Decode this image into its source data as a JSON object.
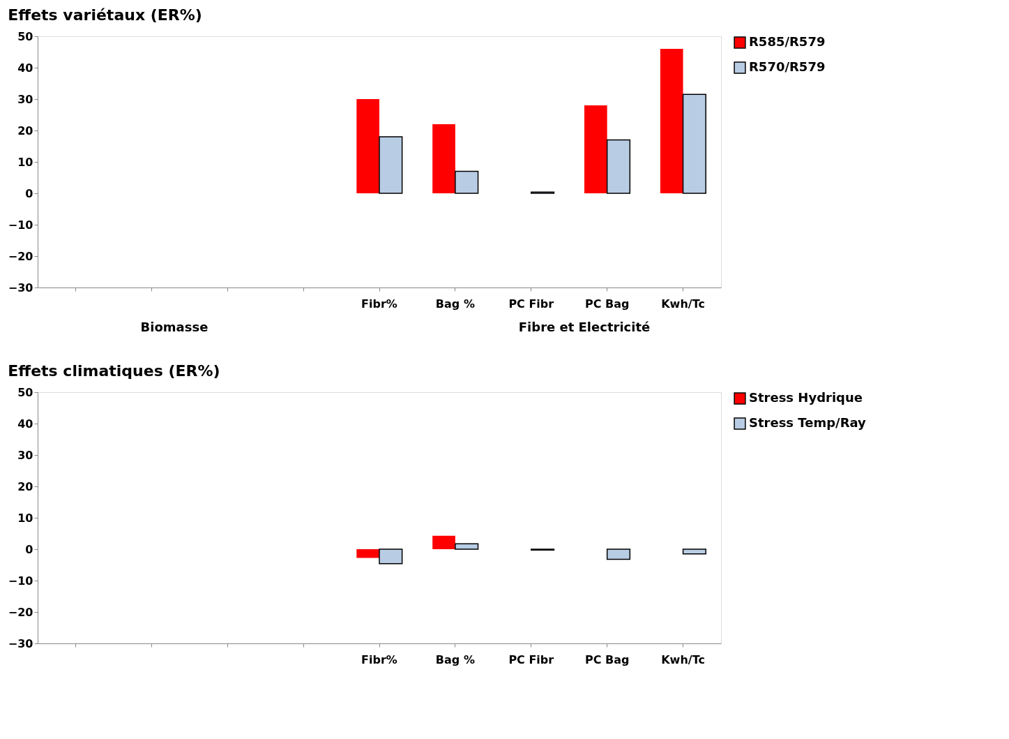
{
  "chart_data": [
    {
      "type": "bar",
      "title": "Effets variétaux (ER%)",
      "categories": [
        null,
        null,
        null,
        null,
        "Fibr%",
        "Bag %",
        "PC Fibr",
        "PC Bag",
        "Kwh/Tc"
      ],
      "series": [
        {
          "name": "R585/R579",
          "color": "#ff0000",
          "values": [
            null,
            null,
            null,
            null,
            30,
            22,
            null,
            28,
            46
          ]
        },
        {
          "name": "R570/R579",
          "color": "#b8cce4",
          "values": [
            null,
            null,
            null,
            null,
            18,
            7,
            0.4,
            17,
            31.5
          ]
        }
      ],
      "ylim": [
        -30,
        50
      ],
      "yticks": [
        -30,
        -20,
        -10,
        0,
        10,
        20,
        30,
        40,
        50
      ],
      "grid": false,
      "legend": "right",
      "annotations": [
        "Biomasse",
        "Fibre et Electricité"
      ]
    },
    {
      "type": "bar",
      "title": "Effets climatiques (ER%)",
      "categories": [
        null,
        null,
        null,
        null,
        "Fibr%",
        "Bag %",
        "PC Fibr",
        "PC Bag",
        "Kwh/Tc"
      ],
      "series": [
        {
          "name": "Stress Hydrique",
          "color": "#ff0000",
          "values": [
            null,
            null,
            null,
            null,
            -2.8,
            4.3,
            null,
            null,
            null
          ]
        },
        {
          "name": "Stress Temp/Ray",
          "color": "#b8cce4",
          "values": [
            null,
            null,
            null,
            null,
            -4.6,
            1.7,
            -0.3,
            -3.2,
            -1.5
          ]
        }
      ],
      "ylim": [
        -30,
        50
      ],
      "yticks": [
        -30,
        -20,
        -10,
        0,
        10,
        20,
        30,
        40,
        50
      ],
      "grid": false,
      "legend": "right"
    }
  ]
}
